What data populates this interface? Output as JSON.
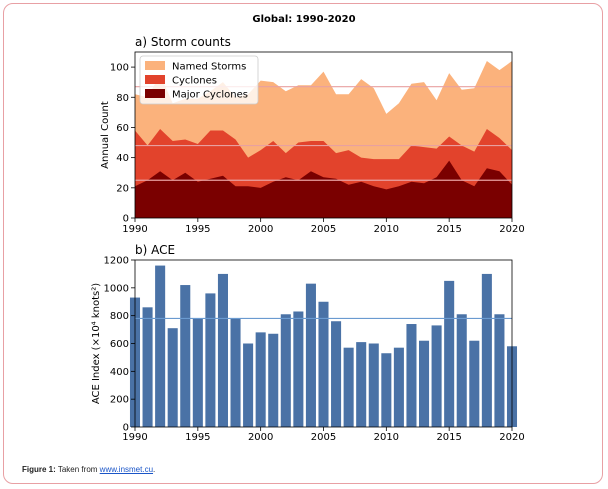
{
  "figure_title": "Global: 1990-2020",
  "caption": {
    "label": "Figure 1:",
    "text": "Taken from",
    "link": "www.insmet.cu",
    "end": "."
  },
  "colors": {
    "named": "#fbb27c",
    "cyclones": "#e2432c",
    "major": "#7a0000",
    "bar": "#4a72a6",
    "ref_line_a": "#e8a0a0",
    "ref_line_b": "#6a9ad0"
  },
  "chart_data": [
    {
      "type": "area",
      "title": "a) Storm counts",
      "ylabel": "Annual Count",
      "xlabel": "",
      "xlim": [
        1990,
        2020
      ],
      "ylim": [
        0,
        110
      ],
      "x": [
        1990,
        1991,
        1992,
        1993,
        1994,
        1995,
        1996,
        1997,
        1998,
        1999,
        2000,
        2001,
        2002,
        2003,
        2004,
        2005,
        2006,
        2007,
        2008,
        2009,
        2010,
        2011,
        2012,
        2013,
        2014,
        2015,
        2016,
        2017,
        2018,
        2019,
        2020
      ],
      "xticks": [
        "1990",
        "1995",
        "2000",
        "2005",
        "2010",
        "2015",
        "2020"
      ],
      "yticks": [
        "0",
        "20",
        "40",
        "60",
        "80",
        "100"
      ],
      "series": [
        {
          "name": "Named Storms",
          "values": [
            82,
            80,
            95,
            76,
            79,
            79,
            84,
            90,
            80,
            82,
            91,
            90,
            84,
            88,
            88,
            97,
            82,
            82,
            92,
            86,
            69,
            76,
            89,
            90,
            78,
            96,
            85,
            86,
            104,
            98,
            104
          ]
        },
        {
          "name": "Cyclones",
          "values": [
            58,
            48,
            59,
            51,
            52,
            49,
            58,
            58,
            52,
            40,
            45,
            51,
            43,
            50,
            51,
            51,
            43,
            45,
            40,
            39,
            39,
            39,
            48,
            47,
            46,
            54,
            48,
            44,
            59,
            53,
            45
          ]
        },
        {
          "name": "Major Cyclones",
          "values": [
            21,
            25,
            31,
            25,
            30,
            24,
            26,
            28,
            21,
            21,
            20,
            24,
            27,
            25,
            31,
            27,
            26,
            22,
            24,
            21,
            19,
            21,
            24,
            23,
            27,
            38,
            25,
            21,
            33,
            31,
            22
          ]
        }
      ],
      "reference_lines": [
        87,
        48,
        25
      ],
      "legend_position": "upper-left"
    },
    {
      "type": "bar",
      "title": "b) ACE",
      "ylabel": "ACE Index (×10⁴ knots²)",
      "xlabel": "",
      "xlim": [
        1990,
        2020
      ],
      "ylim": [
        0,
        1200
      ],
      "categories": [
        1990,
        1991,
        1992,
        1993,
        1994,
        1995,
        1996,
        1997,
        1998,
        1999,
        2000,
        2001,
        2002,
        2003,
        2004,
        2005,
        2006,
        2007,
        2008,
        2009,
        2010,
        2011,
        2012,
        2013,
        2014,
        2015,
        2016,
        2017,
        2018,
        2019,
        2020
      ],
      "values": [
        930,
        860,
        1160,
        710,
        1020,
        780,
        960,
        1100,
        780,
        600,
        680,
        670,
        810,
        830,
        1030,
        900,
        760,
        570,
        610,
        600,
        530,
        570,
        740,
        620,
        730,
        1050,
        810,
        620,
        1100,
        810,
        580
      ],
      "xticks": [
        "1990",
        "1995",
        "2000",
        "2005",
        "2010",
        "2015",
        "2020"
      ],
      "yticks": [
        "0",
        "200",
        "400",
        "600",
        "800",
        "1000",
        "1200"
      ],
      "reference_line": 780
    }
  ]
}
